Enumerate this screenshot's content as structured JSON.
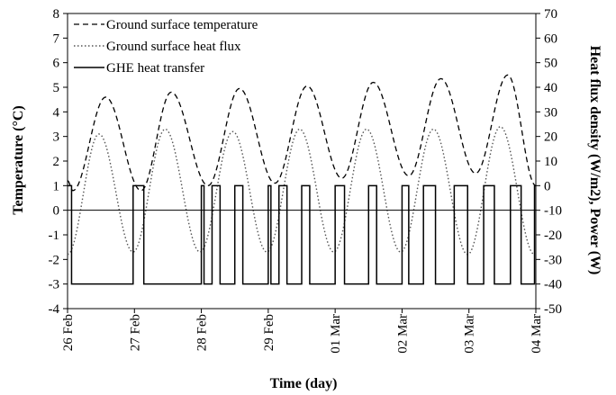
{
  "chart_data": {
    "type": "line",
    "xlabel": "Time (day)",
    "ylabel_left": "Temperature (°C)",
    "ylabel_right": "Heat flux density (W/m2),  Power (W)",
    "x_ticks": [
      "26 Feb",
      "27 Feb",
      "28 Feb",
      "29 Feb",
      "01 Mar",
      "02 Mar",
      "03 Mar",
      "04 Mar"
    ],
    "xlim_days": [
      0,
      7
    ],
    "ylim_left": [
      -4,
      8
    ],
    "ylim_right": [
      -50,
      70
    ],
    "left_ticks": [
      "-4",
      "-3",
      "-2",
      "-1",
      "0",
      "1",
      "2",
      "3",
      "4",
      "5",
      "6",
      "7",
      "8"
    ],
    "right_ticks": [
      "-50",
      "-40",
      "-30",
      "-20",
      "-10",
      "0",
      "10",
      "20",
      "30",
      "40",
      "50",
      "60",
      "70"
    ],
    "grid": false,
    "legend_position": "top-left",
    "series": [
      {
        "name": "Ground surface temperature",
        "axis": "left",
        "style": "dashed",
        "peaks": [
          {
            "day": 0.57,
            "value": 4.6
          },
          {
            "day": 1.55,
            "value": 4.8
          },
          {
            "day": 2.57,
            "value": 4.95
          },
          {
            "day": 3.58,
            "value": 5.05
          },
          {
            "day": 4.57,
            "value": 5.2
          },
          {
            "day": 5.58,
            "value": 5.35
          },
          {
            "day": 6.58,
            "value": 5.5
          }
        ],
        "troughs": [
          {
            "day": 0.08,
            "value": 0.8
          },
          {
            "day": 1.1,
            "value": 0.8
          },
          {
            "day": 2.1,
            "value": 1.0
          },
          {
            "day": 3.1,
            "value": 1.1
          },
          {
            "day": 4.1,
            "value": 1.3
          },
          {
            "day": 5.1,
            "value": 1.4
          },
          {
            "day": 6.1,
            "value": 1.5
          }
        ],
        "end_value": 1.0
      },
      {
        "name": "Ground surface heat flux",
        "axis": "right",
        "style": "dotted",
        "peaks": [
          {
            "day": 0.47,
            "value": 21
          },
          {
            "day": 1.46,
            "value": 23
          },
          {
            "day": 2.47,
            "value": 22
          },
          {
            "day": 3.47,
            "value": 23
          },
          {
            "day": 4.47,
            "value": 23
          },
          {
            "day": 5.47,
            "value": 23
          },
          {
            "day": 6.47,
            "value": 24
          }
        ],
        "troughs": [
          {
            "day": 0.0,
            "value": -28
          },
          {
            "day": 0.98,
            "value": -27
          },
          {
            "day": 1.98,
            "value": -27
          },
          {
            "day": 2.98,
            "value": -27
          },
          {
            "day": 3.98,
            "value": -27
          },
          {
            "day": 4.98,
            "value": -27
          },
          {
            "day": 5.98,
            "value": -28
          },
          {
            "day": 6.98,
            "value": -28
          }
        ]
      },
      {
        "name": "GHE heat transfer",
        "axis": "right",
        "style": "solid",
        "high_value": 0,
        "low_value": -40,
        "on_intervals": [
          [
            0.0,
            0.06
          ],
          [
            0.98,
            1.14
          ],
          [
            2.0,
            2.04
          ],
          [
            2.16,
            2.28
          ],
          [
            2.5,
            2.62
          ],
          [
            3.0,
            3.04
          ],
          [
            3.16,
            3.28
          ],
          [
            3.5,
            3.62
          ],
          [
            4.0,
            4.14
          ],
          [
            4.5,
            4.62
          ],
          [
            5.0,
            5.1
          ],
          [
            5.32,
            5.5
          ],
          [
            5.78,
            5.98
          ],
          [
            6.22,
            6.38
          ],
          [
            6.62,
            6.78
          ],
          [
            6.98,
            7.0
          ]
        ]
      }
    ]
  }
}
